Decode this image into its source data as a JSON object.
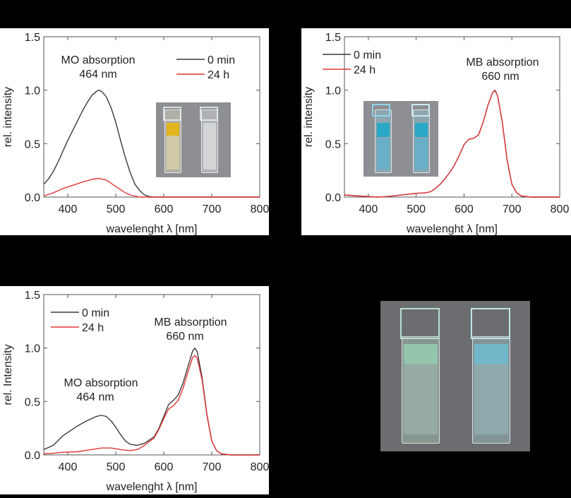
{
  "colors": {
    "series_0min": "#3a3a3a",
    "series_24h": "#e0353a"
  },
  "chart_data": [
    {
      "type": "line",
      "title": "",
      "xlabel": "wavelenght λ [nm]",
      "ylabel": "rel. intensity",
      "xlim": [
        350,
        800
      ],
      "ylim": [
        0,
        1.5
      ],
      "xticks": [
        "400",
        "500",
        "600",
        "700",
        "800"
      ],
      "yticks": [
        "0.0",
        "0.5",
        "1.0",
        "1.5"
      ],
      "legend": {
        "placement": "top-right",
        "entries": [
          "0 min",
          "24 h"
        ]
      },
      "annotations": [
        "MO absorption",
        "464 nm"
      ],
      "series": [
        {
          "name": "0 min",
          "x": [
            350,
            360,
            370,
            380,
            390,
            400,
            410,
            420,
            430,
            440,
            450,
            460,
            464,
            470,
            480,
            490,
            500,
            510,
            520,
            530,
            540,
            550,
            560,
            570,
            580,
            800
          ],
          "y": [
            0.12,
            0.17,
            0.24,
            0.33,
            0.43,
            0.53,
            0.62,
            0.71,
            0.8,
            0.88,
            0.95,
            0.99,
            1.0,
            0.99,
            0.94,
            0.84,
            0.7,
            0.53,
            0.37,
            0.23,
            0.12,
            0.06,
            0.02,
            0.005,
            0,
            0
          ]
        },
        {
          "name": "24 h",
          "x": [
            350,
            370,
            390,
            410,
            430,
            450,
            465,
            480,
            490,
            500,
            510,
            520,
            530,
            540,
            550,
            800
          ],
          "y": [
            0.01,
            0.04,
            0.08,
            0.11,
            0.14,
            0.165,
            0.175,
            0.16,
            0.13,
            0.1,
            0.07,
            0.04,
            0.02,
            0.01,
            0,
            0
          ]
        }
      ]
    },
    {
      "type": "line",
      "title": "",
      "xlabel": "wavelenght λ [nm]",
      "ylabel": "rel. intensity",
      "xlim": [
        350,
        800
      ],
      "ylim": [
        0,
        1.5
      ],
      "xticks": [
        "400",
        "500",
        "600",
        "700",
        "800"
      ],
      "yticks": [
        "0.0",
        "0.5",
        "1.0",
        "1.5"
      ],
      "legend": {
        "placement": "top-left",
        "entries": [
          "0 min",
          "24 h"
        ]
      },
      "annotations": [
        "MB absorption",
        "660 nm"
      ],
      "series": [
        {
          "name": "0 min",
          "x": [
            350,
            380,
            400,
            420,
            440,
            460,
            480,
            500,
            520,
            530,
            540,
            550,
            560,
            570,
            580,
            590,
            600,
            610,
            620,
            630,
            640,
            650,
            660,
            665,
            670,
            680,
            690,
            700,
            710,
            720,
            740,
            800
          ],
          "y": [
            0.02,
            0.01,
            0.005,
            0,
            0.005,
            0.015,
            0.025,
            0.035,
            0.04,
            0.05,
            0.08,
            0.12,
            0.17,
            0.23,
            0.3,
            0.39,
            0.49,
            0.54,
            0.55,
            0.58,
            0.7,
            0.86,
            0.98,
            1.0,
            0.95,
            0.7,
            0.35,
            0.12,
            0.04,
            0.01,
            0,
            0
          ]
        },
        {
          "name": "24 h",
          "x": [
            350,
            380,
            400,
            420,
            440,
            460,
            480,
            500,
            520,
            530,
            540,
            550,
            560,
            570,
            580,
            590,
            600,
            610,
            620,
            630,
            640,
            650,
            660,
            665,
            670,
            680,
            690,
            700,
            710,
            720,
            740,
            800
          ],
          "y": [
            0.02,
            0.01,
            0.005,
            0,
            0.005,
            0.015,
            0.025,
            0.035,
            0.04,
            0.05,
            0.08,
            0.12,
            0.17,
            0.23,
            0.3,
            0.39,
            0.49,
            0.54,
            0.55,
            0.58,
            0.7,
            0.86,
            0.98,
            0.995,
            0.95,
            0.7,
            0.35,
            0.12,
            0.04,
            0.01,
            0,
            0
          ]
        }
      ]
    },
    {
      "type": "line",
      "title": "",
      "xlabel": "wavelenght λ [nm]",
      "ylabel": "rel. Intensity",
      "xlim": [
        350,
        800
      ],
      "ylim": [
        0,
        1.5
      ],
      "xticks": [
        "400",
        "500",
        "600",
        "700",
        "800"
      ],
      "yticks": [
        "0.0",
        "0.5",
        "1.0",
        "1.5"
      ],
      "legend": {
        "placement": "top-left",
        "entries": [
          "0 min",
          "24 h"
        ]
      },
      "annotations": [
        "MO absorption",
        "464 nm",
        "MB absorption",
        "660 nm"
      ],
      "series": [
        {
          "name": "0 min",
          "x": [
            350,
            370,
            390,
            400,
            420,
            440,
            460,
            470,
            480,
            490,
            500,
            510,
            520,
            530,
            545,
            560,
            580,
            590,
            600,
            610,
            620,
            630,
            640,
            650,
            660,
            665,
            670,
            680,
            690,
            700,
            710,
            720,
            740,
            800
          ],
          "y": [
            0.05,
            0.09,
            0.18,
            0.21,
            0.27,
            0.32,
            0.36,
            0.37,
            0.36,
            0.32,
            0.26,
            0.19,
            0.13,
            0.1,
            0.09,
            0.11,
            0.17,
            0.25,
            0.36,
            0.47,
            0.51,
            0.56,
            0.67,
            0.82,
            0.97,
            1.0,
            0.96,
            0.72,
            0.38,
            0.13,
            0.04,
            0.01,
            0,
            0
          ]
        },
        {
          "name": "24 h",
          "x": [
            350,
            370,
            390,
            420,
            450,
            470,
            490,
            510,
            530,
            545,
            560,
            580,
            590,
            600,
            610,
            620,
            630,
            640,
            650,
            660,
            665,
            670,
            680,
            690,
            700,
            710,
            720,
            740,
            800
          ],
          "y": [
            0.01,
            0.015,
            0.025,
            0.03,
            0.05,
            0.065,
            0.065,
            0.05,
            0.04,
            0.05,
            0.09,
            0.16,
            0.24,
            0.34,
            0.43,
            0.46,
            0.51,
            0.62,
            0.77,
            0.91,
            0.93,
            0.9,
            0.7,
            0.37,
            0.13,
            0.04,
            0.01,
            0,
            0
          ]
        }
      ]
    }
  ]
}
